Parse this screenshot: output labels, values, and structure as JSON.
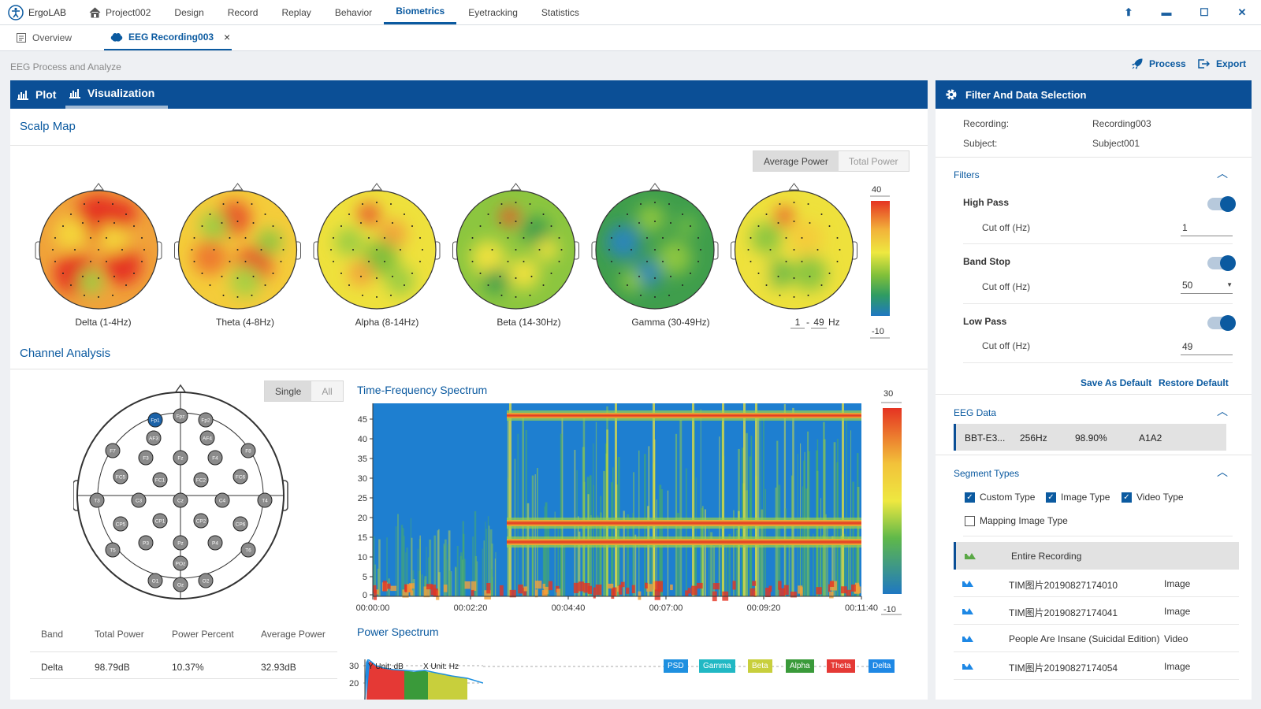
{
  "app": {
    "name": "ErgoLAB"
  },
  "nav": [
    {
      "label": "Project002",
      "icon": "home-icon"
    },
    {
      "label": "Design"
    },
    {
      "label": "Record"
    },
    {
      "label": "Replay"
    },
    {
      "label": "Behavior"
    },
    {
      "label": "Biometrics",
      "active": true
    },
    {
      "label": "Eyetracking"
    },
    {
      "label": "Statistics"
    }
  ],
  "tabs": [
    {
      "label": "Overview"
    },
    {
      "label": "EEG Recording003",
      "active": true,
      "close": "×"
    }
  ],
  "page": {
    "subtitle": "EEG Process and Analyze",
    "process_label": "Process",
    "export_label": "Export"
  },
  "left_tabs": {
    "plot": "Plot",
    "visualization": "Visualization"
  },
  "scalp": {
    "title": "Scalp Map",
    "toggle": [
      "Average Power",
      "Total Power"
    ],
    "maps": [
      {
        "label": "Delta (1-4Hz)"
      },
      {
        "label": "Theta (4-8Hz)"
      },
      {
        "label": "Alpha (8-14Hz)"
      },
      {
        "label": "Beta (14-30Hz)"
      },
      {
        "label": "Gamma (30-49Hz)"
      }
    ],
    "custom_range": {
      "low": "1",
      "high": "49",
      "unit": "Hz"
    },
    "colorbar": {
      "max": "40",
      "min": "-10"
    }
  },
  "channel": {
    "title": "Channel Analysis",
    "toggle": [
      "Single",
      "All"
    ],
    "electrodes": [
      "Fp1",
      "Fpz",
      "Fp2",
      "AF3",
      "AF4",
      "F7",
      "F3",
      "Fz",
      "F4",
      "F8",
      "FC5",
      "FC1",
      "FC2",
      "FC6",
      "T3",
      "C3",
      "Cz",
      "C4",
      "T4",
      "CP5",
      "CP1",
      "CP2",
      "CP6",
      "T5",
      "P3",
      "Pz",
      "P4",
      "T6",
      "POz",
      "O1",
      "Oz",
      "O2"
    ],
    "selected": "Fp1",
    "table": {
      "headers": [
        "Band",
        "Total Power",
        "Power Percent",
        "Average Power"
      ],
      "rows": [
        [
          "Delta",
          "98.79dB",
          "10.37%",
          "32.93dB"
        ]
      ]
    }
  },
  "tf": {
    "title": "Time-Frequency Spectrum",
    "y_ticks": [
      "45",
      "40",
      "35",
      "30",
      "25",
      "20",
      "15",
      "10",
      "5",
      "0"
    ],
    "x_ticks": [
      "00:00:00",
      "00:02:20",
      "00:04:40",
      "00:07:00",
      "00:09:20",
      "00:11:40"
    ],
    "colorbar": {
      "max": "30",
      "min": "-10"
    }
  },
  "power_spectrum": {
    "title": "Power Spectrum",
    "y_unit": "Y Unit: dB",
    "x_unit": "X Unit: Hz",
    "y_ticks": [
      "30",
      "20"
    ],
    "legend": [
      {
        "label": "PSD",
        "color": "#1e90e0"
      },
      {
        "label": "Gamma",
        "color": "#21b8c4"
      },
      {
        "label": "Beta",
        "color": "#c8cf3c"
      },
      {
        "label": "Alpha",
        "color": "#3a9a3a"
      },
      {
        "label": "Theta",
        "color": "#e53935"
      },
      {
        "label": "Delta",
        "color": "#1e88e5"
      }
    ]
  },
  "filter_panel": {
    "title": "Filter And Data Selection",
    "recording_label": "Recording:",
    "recording": "Recording003",
    "subject_label": "Subject:",
    "subject": "Subject001",
    "filters_title": "Filters",
    "filters": [
      {
        "name": "High Pass",
        "cutoff_label": "Cut off (Hz)",
        "value": "1"
      },
      {
        "name": "Band Stop",
        "cutoff_label": "Cut off (Hz)",
        "value": "50"
      },
      {
        "name": "Low Pass",
        "cutoff_label": "Cut off (Hz)",
        "value": "49"
      }
    ],
    "save_default": "Save As Default",
    "restore_default": "Restore Default",
    "eeg_title": "EEG Data",
    "eeg_row": {
      "name": "BBT-E3...",
      "rate": "256Hz",
      "quality": "98.90%",
      "ref": "A1A2"
    },
    "segments_title": "Segment Types",
    "types": [
      {
        "label": "Custom Type",
        "checked": true
      },
      {
        "label": "Image Type",
        "checked": true
      },
      {
        "label": "Video Type",
        "checked": true
      },
      {
        "label": "Mapping Image Type",
        "checked": false
      }
    ],
    "segments": [
      {
        "name": "Entire Recording",
        "type": ""
      },
      {
        "name": "TIM图片20190827174010",
        "type": "Image"
      },
      {
        "name": "TIM图片20190827174041",
        "type": "Image"
      },
      {
        "name": "People Are Insane (Suicidal Edition)",
        "type": "Video"
      },
      {
        "name": "TIM图片20190827174054",
        "type": "Image"
      }
    ]
  }
}
